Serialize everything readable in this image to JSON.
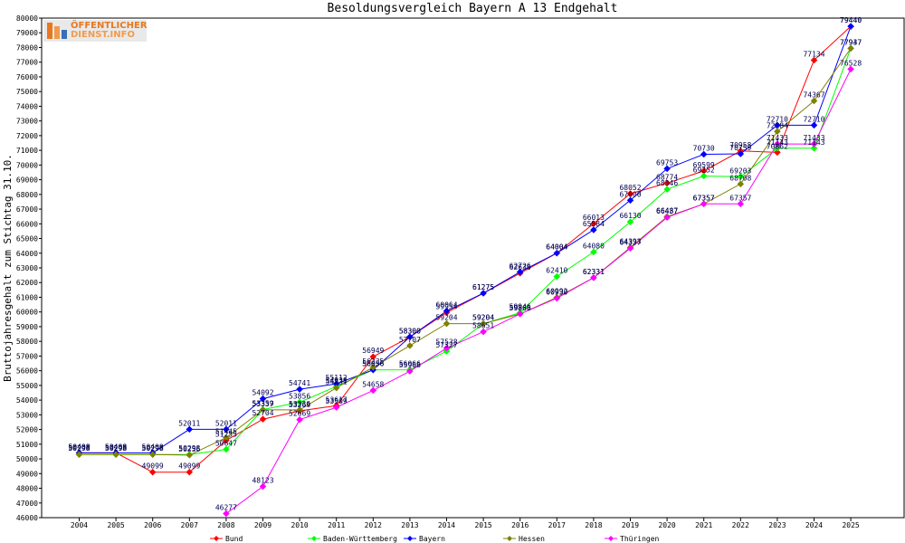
{
  "chart_data": {
    "type": "line",
    "title": "Besoldungsvergleich Bayern A 13 Endgehalt",
    "ylabel": "Bruttojahresgehalt zum Stichtag 31.10.",
    "xlabel": "",
    "x": [
      2004,
      2005,
      2006,
      2007,
      2008,
      2009,
      2010,
      2011,
      2012,
      2013,
      2014,
      2015,
      2016,
      2017,
      2018,
      2019,
      2020,
      2021,
      2022,
      2023,
      2024,
      2025
    ],
    "ylim": [
      46000,
      80000
    ],
    "yticks": [
      46000,
      47000,
      48000,
      49000,
      50000,
      51000,
      52000,
      53000,
      54000,
      55000,
      56000,
      57000,
      58000,
      59000,
      60000,
      61000,
      62000,
      63000,
      64000,
      65000,
      66000,
      67000,
      68000,
      69000,
      70000,
      71000,
      72000,
      73000,
      74000,
      75000,
      76000,
      77000,
      78000,
      79000,
      80000
    ],
    "grid": false,
    "legend_position": "bottom",
    "series": [
      {
        "name": "Bund",
        "color": "#ff0000",
        "values": [
          50408,
          50408,
          49099,
          49099,
          51255,
          52704,
          53269,
          53617,
          56949,
          58300,
          59954,
          61275,
          62636,
          64004,
          66013,
          68052,
          68774,
          69599,
          70958,
          70862,
          77134,
          79440
        ]
      },
      {
        "name": "Baden-Württemberg",
        "color": "#00ff00",
        "values": [
          50298,
          50298,
          50298,
          50298,
          50647,
          53359,
          53856,
          54938,
          56056,
          56066,
          57327,
          59204,
          59946,
          62410,
          64080,
          66130,
          68346,
          69252,
          69203,
          71143,
          71143,
          77947
        ]
      },
      {
        "name": "Bayern",
        "color": "#0000ff",
        "values": [
          50408,
          50408,
          50408,
          52011,
          52011,
          54092,
          54741,
          55112,
          56056,
          58300,
          60064,
          61275,
          62726,
          64004,
          65584,
          67600,
          69753,
          70730,
          70759,
          72710,
          72710,
          79440
        ]
      },
      {
        "name": "Hessen",
        "color": "#808000",
        "values": [
          50298,
          50298,
          50298,
          50256,
          51445,
          53337,
          53336,
          54831,
          56235,
          57707,
          59204,
          59204,
          59866,
          60992,
          62331,
          64393,
          66487,
          67357,
          68708,
          72284,
          74367,
          77937
        ]
      },
      {
        "name": "Thüringen",
        "color": "#ff00ff",
        "values": [
          null,
          null,
          null,
          null,
          46277,
          48123,
          52669,
          53509,
          54658,
          55968,
          57538,
          58651,
          59866,
          60930,
          62331,
          64337,
          66437,
          67357,
          67357,
          71433,
          71433,
          76528
        ]
      }
    ]
  },
  "logo": {
    "line1": "ÖFFENTLICHER",
    "line2": "DIENST.INFO",
    "color": "#e8781e"
  }
}
